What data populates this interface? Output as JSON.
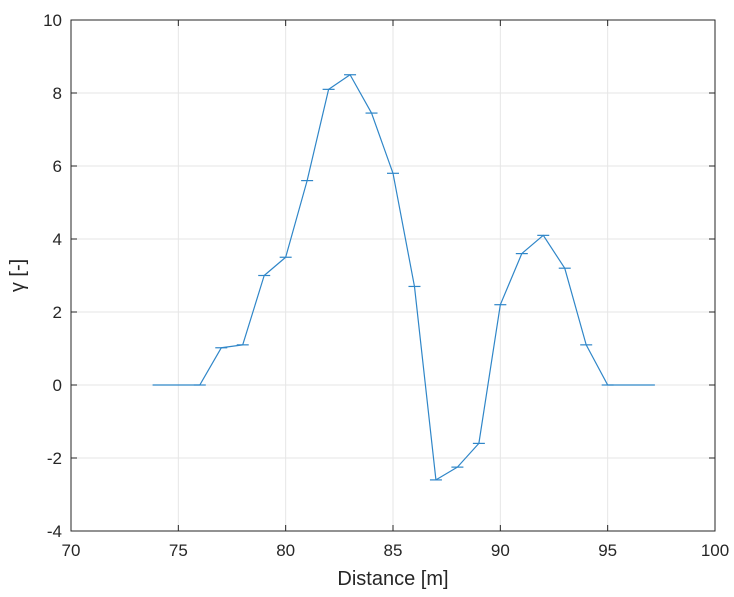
{
  "chart_data": {
    "type": "line",
    "title": "",
    "xlabel": "Distance [m]",
    "ylabel": "γ [-]",
    "xlim": [
      70,
      100
    ],
    "ylim": [
      -4,
      10
    ],
    "xticks": [
      "70",
      "75",
      "80",
      "85",
      "90",
      "95",
      "100"
    ],
    "yticks": [
      "-4",
      "-2",
      "0",
      "2",
      "4",
      "6",
      "8",
      "10"
    ],
    "grid": true,
    "line_color": "#2f86c8",
    "x": [
      73.8,
      76,
      77,
      78,
      79,
      80,
      81,
      82,
      83,
      84,
      85,
      86,
      87,
      88,
      89,
      90,
      91,
      92,
      93,
      94,
      95,
      97.2
    ],
    "y": [
      0,
      0,
      1.02,
      1.1,
      3.0,
      3.5,
      5.6,
      8.1,
      8.5,
      7.45,
      5.8,
      2.7,
      -2.6,
      -2.25,
      -1.6,
      2.2,
      3.6,
      4.1,
      3.2,
      1.1,
      0,
      0
    ],
    "marker_x": [
      76,
      77,
      78,
      79,
      80,
      81,
      82,
      83,
      84,
      85,
      86,
      87,
      88,
      89,
      90,
      91,
      92,
      93,
      94,
      95
    ]
  }
}
